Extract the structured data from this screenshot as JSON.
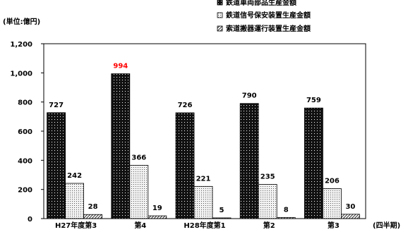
{
  "chart_data": {
    "type": "bar",
    "unit_label": "(単位:億円)",
    "x_unit_label": "(四半期)",
    "categories": [
      "H27年度第3",
      "第4",
      "H28年度第1",
      "第2",
      "第3"
    ],
    "series": [
      {
        "name": "鉄道車両部品生産金額",
        "values": [
          727,
          994,
          726,
          790,
          759
        ],
        "pattern": "dots-dark",
        "color": "#111111"
      },
      {
        "name": "鉄道信号保安装置生産金額",
        "values": [
          242,
          366,
          221,
          235,
          206
        ],
        "pattern": "dots-light",
        "color": "#e6e6e6"
      },
      {
        "name": "索道搬器運行装置生産金額",
        "values": [
          28,
          19,
          5,
          8,
          30
        ],
        "pattern": "hatch",
        "color": "#ffffff"
      }
    ],
    "y_ticks": [
      "0",
      "200",
      "400",
      "600",
      "800",
      "1,000",
      "1,200"
    ],
    "ylim": [
      0,
      1200
    ],
    "highlight": {
      "series": 0,
      "category": 1,
      "color": "#ff0000"
    },
    "legend_position": "top-right",
    "grid": false
  }
}
